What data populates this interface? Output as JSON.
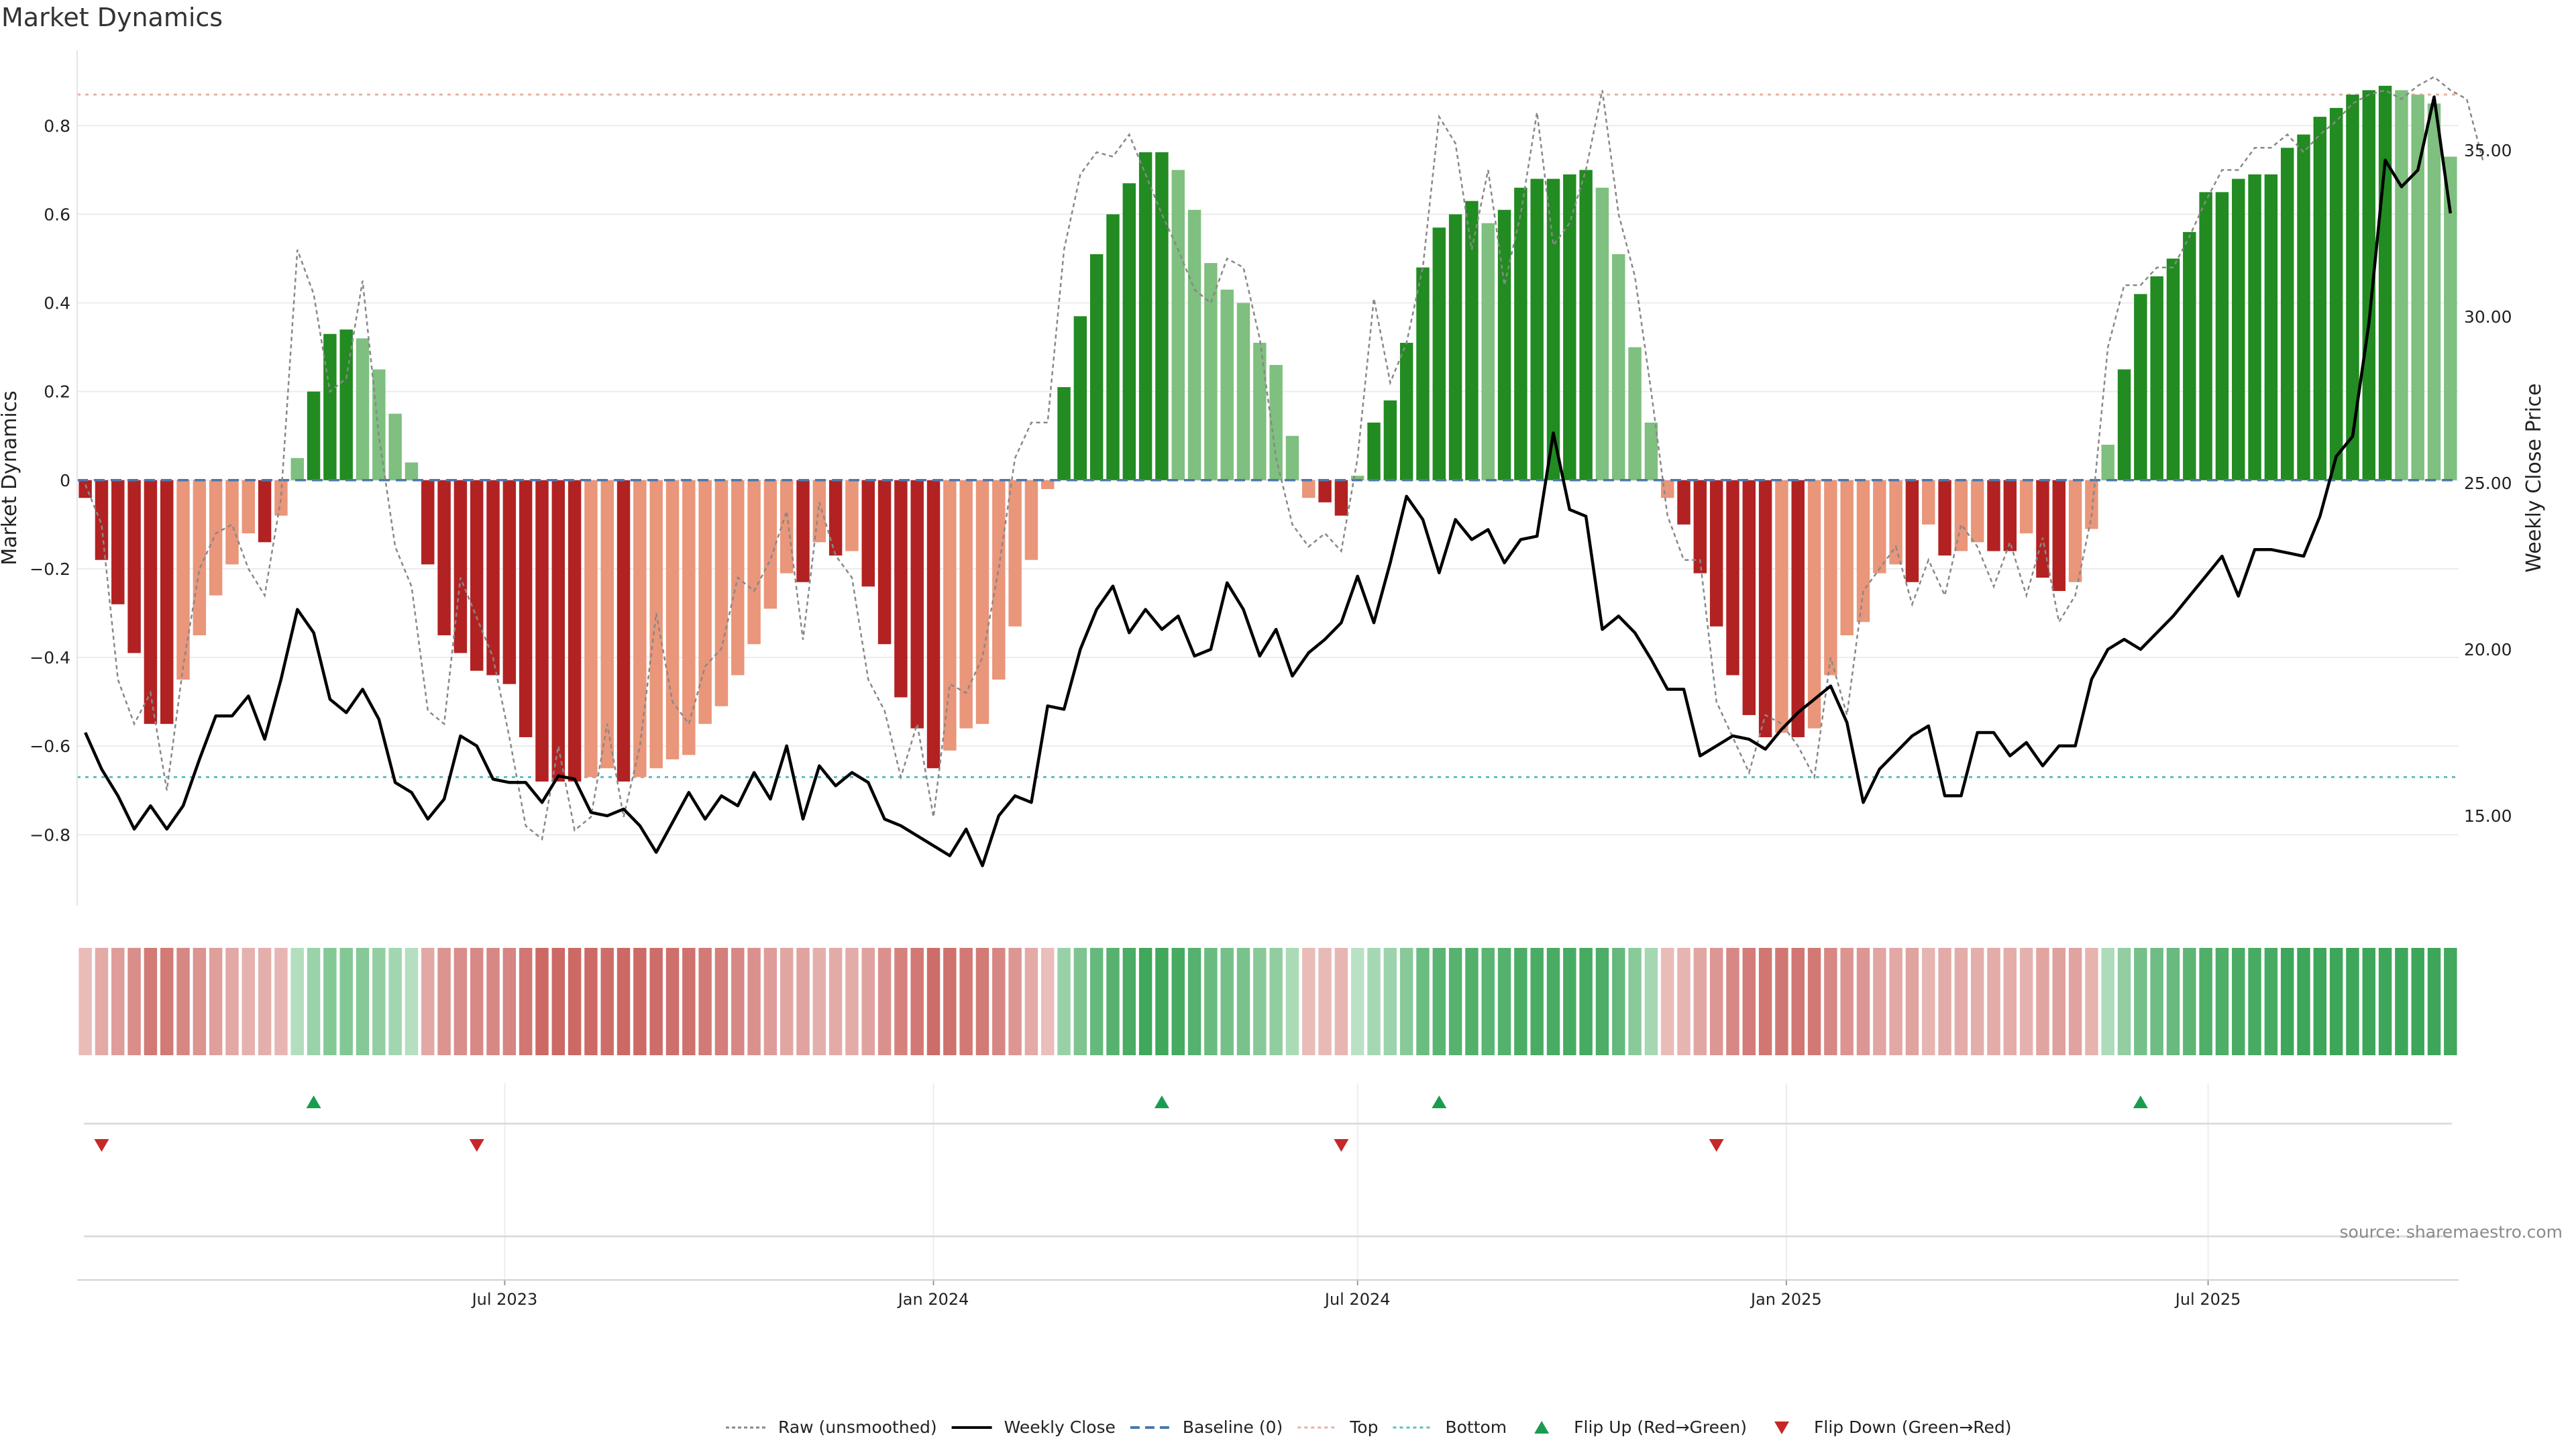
{
  "chart_data": {
    "type": "bar",
    "title": "Market Dynamics",
    "source": "source: sharemaestro.com",
    "y_axis": {
      "label": "Market Dynamics",
      "range": [
        -0.96,
        0.97
      ],
      "ticks": [
        0.8,
        0.6,
        0.4,
        0.2,
        0,
        -0.2,
        -0.4,
        -0.6,
        -0.8
      ],
      "tick_labels": [
        "0.8",
        "0.6",
        "0.4",
        "0.2",
        "0",
        "−0.2",
        "−0.4",
        "−0.6",
        "−0.8"
      ]
    },
    "y2_axis": {
      "label": "Weekly Close Price",
      "range": [
        12.3,
        38.0
      ],
      "ticks": [
        35,
        30,
        25,
        20,
        15
      ],
      "tick_labels": [
        "35.00",
        "30.00",
        "25.00",
        "20.00",
        "15.00"
      ]
    },
    "x_axis": {
      "start": "2023-01-02",
      "end": "2025-10-13",
      "ticks": [
        {
          "date": "2023-07-01",
          "label": "Jul 2023"
        },
        {
          "date": "2024-01-01",
          "label": "Jan 2024"
        },
        {
          "date": "2024-07-01",
          "label": "Jul 2024"
        },
        {
          "date": "2025-01-01",
          "label": "Jan 2025"
        },
        {
          "date": "2025-07-01",
          "label": "Jul 2025"
        }
      ]
    },
    "top_line": 0.87,
    "bottom_line": -0.67,
    "bar_values": [
      -0.04,
      -0.18,
      -0.28,
      -0.39,
      -0.55,
      -0.55,
      -0.45,
      -0.35,
      -0.26,
      -0.19,
      -0.12,
      -0.14,
      -0.08,
      0.05,
      0.2,
      0.33,
      0.34,
      0.32,
      0.25,
      0.15,
      0.04,
      -0.19,
      -0.35,
      -0.39,
      -0.43,
      -0.44,
      -0.46,
      -0.58,
      -0.68,
      -0.68,
      -0.68,
      -0.67,
      -0.65,
      -0.68,
      -0.67,
      -0.65,
      -0.63,
      -0.62,
      -0.55,
      -0.51,
      -0.44,
      -0.37,
      -0.29,
      -0.21,
      -0.23,
      -0.14,
      -0.17,
      -0.16,
      -0.24,
      -0.37,
      -0.49,
      -0.56,
      -0.65,
      -0.61,
      -0.56,
      -0.55,
      -0.45,
      -0.33,
      -0.18,
      -0.02,
      0.21,
      0.37,
      0.51,
      0.6,
      0.67,
      0.74,
      0.74,
      0.7,
      0.61,
      0.49,
      0.43,
      0.4,
      0.31,
      0.26,
      0.1,
      -0.04,
      -0.05,
      -0.08,
      0.01,
      0.13,
      0.18,
      0.31,
      0.48,
      0.57,
      0.6,
      0.63,
      0.58,
      0.61,
      0.66,
      0.68,
      0.68,
      0.69,
      0.7,
      0.66,
      0.51,
      0.3,
      0.13,
      -0.04,
      -0.1,
      -0.21,
      -0.33,
      -0.44,
      -0.53,
      -0.58,
      -0.57,
      -0.58,
      -0.56,
      -0.44,
      -0.35,
      -0.32,
      -0.21,
      -0.19,
      -0.23,
      -0.1,
      -0.17,
      -0.16,
      -0.14,
      -0.16,
      -0.16,
      -0.12,
      -0.22,
      -0.25,
      -0.23,
      -0.11,
      0.08,
      0.25,
      0.42,
      0.46,
      0.5,
      0.56,
      0.65,
      0.65,
      0.68,
      0.69,
      0.69,
      0.75,
      0.78,
      0.82,
      0.84,
      0.87,
      0.88,
      0.89,
      0.88,
      0.87,
      0.85,
      0.73
    ],
    "close_values": [
      17.5,
      16.4,
      15.6,
      14.6,
      15.3,
      14.6,
      15.3,
      16.7,
      18.0,
      18.0,
      18.6,
      17.3,
      19.1,
      21.2,
      20.5,
      18.5,
      18.1,
      18.8,
      17.9,
      16.0,
      15.7,
      14.9,
      15.5,
      17.4,
      17.1,
      16.1,
      16.0,
      16.0,
      15.4,
      16.2,
      16.1,
      15.1,
      15.0,
      15.2,
      14.7,
      13.9,
      14.8,
      15.7,
      14.9,
      15.6,
      15.3,
      16.3,
      15.5,
      17.1,
      14.9,
      16.5,
      15.9,
      16.3,
      16.0,
      14.9,
      14.7,
      14.4,
      14.1,
      13.8,
      14.6,
      13.5,
      15.0,
      15.6,
      15.4,
      18.3,
      18.2,
      20.0,
      21.2,
      21.9,
      20.5,
      21.2,
      20.6,
      21.0,
      19.8,
      20.0,
      22.0,
      21.2,
      19.8,
      20.6,
      19.2,
      19.9,
      20.3,
      20.8,
      22.2,
      20.8,
      22.6,
      24.6,
      23.9,
      22.3,
      23.9,
      23.3,
      23.6,
      22.6,
      23.3,
      23.4,
      26.5,
      24.2,
      24.0,
      20.6,
      21.0,
      20.5,
      19.7,
      18.8,
      18.8,
      16.8,
      17.1,
      17.4,
      17.3,
      17.0,
      17.6,
      18.1,
      18.5,
      18.9,
      17.8,
      15.4,
      16.4,
      16.9,
      17.4,
      17.7,
      15.6,
      15.6,
      17.5,
      17.5,
      16.8,
      17.2,
      16.5,
      17.1,
      17.1,
      19.1,
      20.0,
      20.3,
      20.0,
      20.5,
      21.0,
      21.6,
      22.2,
      22.8,
      21.6,
      23.0,
      23.0,
      22.9,
      22.8,
      24.0,
      25.8,
      26.4,
      29.8,
      34.7,
      33.9,
      34.4,
      36.6,
      33.1
    ],
    "raw_values": [
      -0.01,
      -0.1,
      -0.45,
      -0.55,
      -0.48,
      -0.7,
      -0.42,
      -0.2,
      -0.12,
      -0.1,
      -0.2,
      -0.26,
      -0.04,
      0.52,
      0.42,
      0.2,
      0.23,
      0.45,
      0.1,
      -0.15,
      -0.24,
      -0.52,
      -0.55,
      -0.22,
      -0.31,
      -0.4,
      -0.58,
      -0.78,
      -0.81,
      -0.6,
      -0.79,
      -0.76,
      -0.55,
      -0.76,
      -0.6,
      -0.3,
      -0.5,
      -0.55,
      -0.42,
      -0.38,
      -0.22,
      -0.25,
      -0.18,
      -0.07,
      -0.36,
      -0.05,
      -0.17,
      -0.22,
      -0.45,
      -0.52,
      -0.67,
      -0.55,
      -0.76,
      -0.46,
      -0.48,
      -0.4,
      -0.2,
      0.05,
      0.13,
      0.13,
      0.52,
      0.69,
      0.74,
      0.73,
      0.78,
      0.69,
      0.6,
      0.52,
      0.43,
      0.4,
      0.5,
      0.48,
      0.32,
      0.05,
      -0.1,
      -0.15,
      -0.12,
      -0.16,
      0.05,
      0.41,
      0.22,
      0.31,
      0.48,
      0.82,
      0.76,
      0.52,
      0.7,
      0.44,
      0.6,
      0.83,
      0.53,
      0.58,
      0.7,
      0.88,
      0.6,
      0.46,
      0.2,
      -0.08,
      -0.18,
      -0.18,
      -0.5,
      -0.58,
      -0.66,
      -0.53,
      -0.55,
      -0.6,
      -0.67,
      -0.4,
      -0.53,
      -0.25,
      -0.2,
      -0.15,
      -0.28,
      -0.18,
      -0.26,
      -0.1,
      -0.15,
      -0.24,
      -0.14,
      -0.26,
      -0.13,
      -0.32,
      -0.26,
      -0.08,
      0.3,
      0.44,
      0.44,
      0.48,
      0.48,
      0.55,
      0.63,
      0.7,
      0.7,
      0.75,
      0.75,
      0.78,
      0.74,
      0.78,
      0.81,
      0.85,
      0.87,
      0.88,
      0.86,
      0.89,
      0.91,
      0.88,
      0.86,
      0.72
    ],
    "flip_up": [
      "2023-04-10",
      "2024-04-08",
      "2024-08-05",
      "2025-06-02"
    ],
    "flip_down": [
      "2023-01-09",
      "2023-06-19",
      "2024-06-24",
      "2024-12-02"
    ],
    "legend": {
      "placement": "bottom-center",
      "entries": [
        {
          "key": "raw",
          "label": "Raw (unsmoothed)"
        },
        {
          "key": "close",
          "label": "Weekly Close"
        },
        {
          "key": "baseline",
          "label": "Baseline (0)"
        },
        {
          "key": "top",
          "label": "Top"
        },
        {
          "key": "bottom",
          "label": "Bottom"
        },
        {
          "key": "flipup",
          "label": "Flip Up (Red→Green)"
        },
        {
          "key": "flipdown",
          "label": "Flip Down (Green→Red)"
        }
      ]
    },
    "colors": {
      "pos_strong": "#228b22",
      "pos_weak": "#7fbf7f",
      "neg_strong": "#b22222",
      "neg_weak": "#e9967a",
      "close_line": "#000000",
      "raw_line": "#888888",
      "baseline": "#4a78b0",
      "top_line": "#e8b39c",
      "bottom_line": "#5fbcc6",
      "flip_up": "#1a9c50",
      "flip_down": "#c62828"
    }
  }
}
